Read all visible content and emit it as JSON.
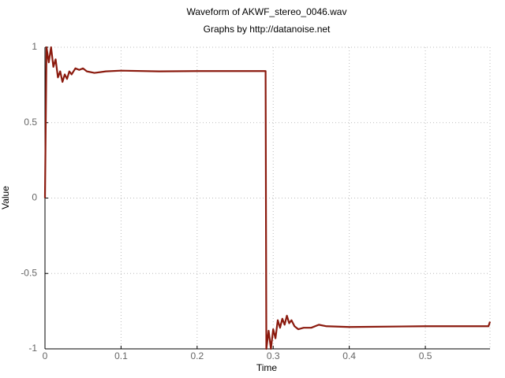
{
  "chart_data": {
    "type": "line",
    "title": "Waveform of AKWF_stereo_0046.wav",
    "subtitle": "Graphs by http://datanoise.net",
    "x_label": "Time",
    "y_label": "Value",
    "x": [
      0,
      0.002,
      0.005,
      0.008,
      0.011,
      0.014,
      0.017,
      0.02,
      0.023,
      0.026,
      0.029,
      0.032,
      0.035,
      0.04,
      0.045,
      0.05,
      0.055,
      0.065,
      0.08,
      0.1,
      0.15,
      0.2,
      0.29,
      0.291,
      0.294,
      0.297,
      0.3,
      0.303,
      0.306,
      0.309,
      0.312,
      0.315,
      0.318,
      0.321,
      0.324,
      0.328,
      0.333,
      0.34,
      0.35,
      0.36,
      0.37,
      0.4,
      0.5,
      0.583,
      0.585
    ],
    "series": [
      {
        "name": "Value",
        "color": "#8b1a0e",
        "values": [
          0,
          1.0,
          0.9,
          1.0,
          0.87,
          0.92,
          0.8,
          0.84,
          0.77,
          0.82,
          0.79,
          0.84,
          0.82,
          0.86,
          0.85,
          0.86,
          0.84,
          0.83,
          0.84,
          0.845,
          0.84,
          0.842,
          0.842,
          -1.0,
          -0.88,
          -1.0,
          -0.87,
          -0.93,
          -0.81,
          -0.86,
          -0.8,
          -0.84,
          -0.78,
          -0.83,
          -0.81,
          -0.85,
          -0.87,
          -0.86,
          -0.86,
          -0.84,
          -0.85,
          -0.855,
          -0.85,
          -0.85,
          -0.82
        ]
      }
    ],
    "xlim": [
      0,
      0.585
    ],
    "xticks": [
      0,
      0.1,
      0.2,
      0.3,
      0.4,
      0.5
    ],
    "ylim": [
      -1,
      1
    ],
    "yticks": [
      -1,
      -0.5,
      0,
      0.5,
      1
    ],
    "grid": true
  }
}
